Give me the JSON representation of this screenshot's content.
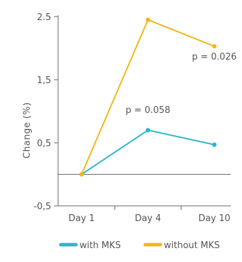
{
  "chart_data": {
    "type": "line",
    "categories": [
      "Day 1",
      "Day 4",
      "Day 10"
    ],
    "series": [
      {
        "name": "with MKS",
        "values": [
          0.0,
          0.7,
          0.47
        ],
        "color": "#2ab7c9"
      },
      {
        "name": "without MKS",
        "values": [
          0.0,
          2.45,
          2.03
        ],
        "color": "#f5b617"
      }
    ],
    "ylabel": "Change  (%)",
    "xlabel": "",
    "ylim": [
      -0.5,
      2.5
    ],
    "yticks": [
      {
        "value": -0.5,
        "label": "-0,5"
      },
      {
        "value": 0.5,
        "label": "0,5"
      },
      {
        "value": 1.5,
        "label": "1,5"
      },
      {
        "value": 2.5,
        "label": "2.5"
      }
    ],
    "annotations": [
      {
        "text": "p = 0.058",
        "category": "Day 4",
        "y": 0.97
      },
      {
        "text": "p = 0.026",
        "category": "Day 10",
        "y": 1.82
      }
    ],
    "baseline": 0,
    "grid": false,
    "legend_position": "bottom"
  }
}
